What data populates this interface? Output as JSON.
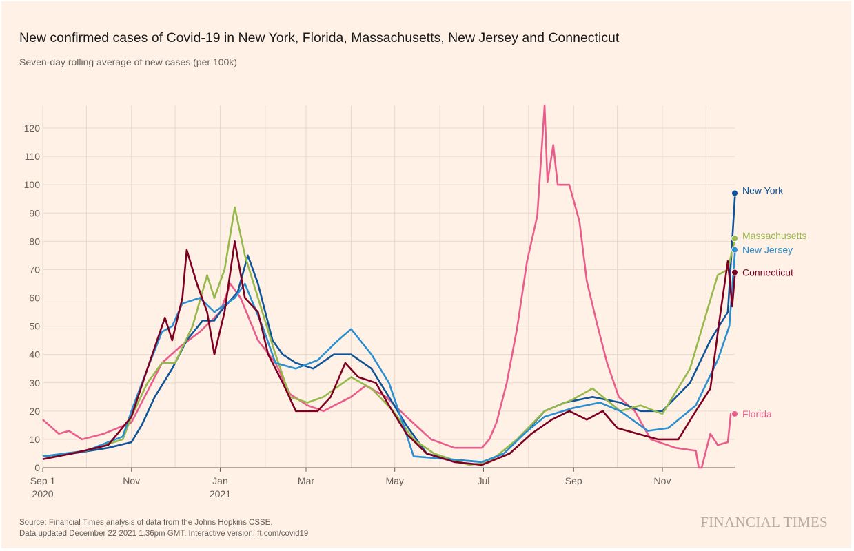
{
  "title": "New confirmed cases of Covid-19 in New York, Florida, Massachusetts, New Jersey and Connecticut",
  "subtitle": "Seven-day rolling average of new cases (per 100k)",
  "source": "Source: Financial Times analysis of data from the Johns Hopkins CSSE.",
  "updated": "Data updated December 22 2021 1.36pm GMT. Interactive version: ft.com/covid19",
  "logo": "FINANCIAL TIMES",
  "chart_data": {
    "type": "line",
    "title": "New confirmed cases of Covid-19 in New York, Florida, Massachusetts, New Jersey and Connecticut",
    "ylabel": "Seven-day rolling average of new cases (per 100k)",
    "x_units": "days since Sep 1 2020",
    "xlim": [
      0,
      476
    ],
    "ylim": [
      0,
      128
    ],
    "yticks": [
      0,
      10,
      20,
      30,
      40,
      50,
      60,
      70,
      80,
      90,
      100,
      110,
      120
    ],
    "xticks": [
      {
        "day": 0,
        "label": "Sep 1",
        "sub": "2020"
      },
      {
        "day": 61,
        "label": "Nov",
        "sub": ""
      },
      {
        "day": 122,
        "label": "Jan",
        "sub": "2021"
      },
      {
        "day": 181,
        "label": "Mar",
        "sub": ""
      },
      {
        "day": 242,
        "label": "May",
        "sub": ""
      },
      {
        "day": 303,
        "label": "Jul",
        "sub": ""
      },
      {
        "day": 365,
        "label": "Sep",
        "sub": ""
      },
      {
        "day": 426,
        "label": "Nov",
        "sub": ""
      }
    ],
    "month_gridlines": [
      0,
      30,
      61,
      91,
      122,
      153,
      181,
      212,
      242,
      273,
      303,
      334,
      365,
      395,
      426,
      456
    ],
    "grid": true,
    "series": [
      {
        "name": "Florida",
        "color": "#e95d8c",
        "points": [
          [
            0,
            17
          ],
          [
            11,
            12
          ],
          [
            18,
            13
          ],
          [
            27,
            10
          ],
          [
            42,
            12
          ],
          [
            61,
            16
          ],
          [
            70,
            25
          ],
          [
            82,
            37
          ],
          [
            95,
            43
          ],
          [
            108,
            48
          ],
          [
            122,
            55
          ],
          [
            129,
            65
          ],
          [
            136,
            60
          ],
          [
            148,
            45
          ],
          [
            160,
            37
          ],
          [
            170,
            26
          ],
          [
            182,
            22
          ],
          [
            193,
            20
          ],
          [
            212,
            25
          ],
          [
            222,
            29
          ],
          [
            236,
            25
          ],
          [
            250,
            18
          ],
          [
            267,
            10
          ],
          [
            283,
            7
          ],
          [
            302,
            7
          ],
          [
            307,
            10
          ],
          [
            312,
            16
          ],
          [
            319,
            30
          ],
          [
            326,
            49
          ],
          [
            333,
            73
          ],
          [
            340,
            89
          ],
          [
            345,
            128
          ],
          [
            347,
            101
          ],
          [
            351,
            114
          ],
          [
            354,
            100
          ],
          [
            362,
            100
          ],
          [
            369,
            87
          ],
          [
            374,
            66
          ],
          [
            381,
            51
          ],
          [
            388,
            37
          ],
          [
            396,
            25
          ],
          [
            407,
            20
          ],
          [
            418,
            10
          ],
          [
            435,
            7
          ],
          [
            449,
            6
          ],
          [
            451,
            0
          ],
          [
            453,
            0
          ],
          [
            459,
            12
          ],
          [
            464,
            8
          ],
          [
            471,
            9
          ],
          [
            473,
            19
          ],
          [
            476,
            19
          ]
        ],
        "end": 19
      },
      {
        "name": "New York",
        "color": "#0f5499",
        "points": [
          [
            0,
            4
          ],
          [
            20,
            5
          ],
          [
            45,
            7
          ],
          [
            61,
            9
          ],
          [
            68,
            15
          ],
          [
            77,
            25
          ],
          [
            89,
            35
          ],
          [
            99,
            45
          ],
          [
            110,
            52
          ],
          [
            118,
            52
          ],
          [
            122,
            55
          ],
          [
            134,
            62
          ],
          [
            141,
            75
          ],
          [
            148,
            65
          ],
          [
            158,
            45
          ],
          [
            165,
            40
          ],
          [
            174,
            37
          ],
          [
            186,
            35
          ],
          [
            200,
            40
          ],
          [
            212,
            40
          ],
          [
            226,
            35
          ],
          [
            238,
            25
          ],
          [
            250,
            15
          ],
          [
            264,
            5
          ],
          [
            279,
            3
          ],
          [
            302,
            2
          ],
          [
            317,
            5
          ],
          [
            331,
            12
          ],
          [
            345,
            20
          ],
          [
            359,
            23
          ],
          [
            378,
            25
          ],
          [
            397,
            23
          ],
          [
            411,
            20
          ],
          [
            426,
            20
          ],
          [
            445,
            30
          ],
          [
            459,
            45
          ],
          [
            471,
            55
          ],
          [
            476,
            97
          ]
        ],
        "end": 97
      },
      {
        "name": "Massachusetts",
        "color": "#96b84c",
        "points": [
          [
            0,
            4
          ],
          [
            30,
            6
          ],
          [
            55,
            10
          ],
          [
            61,
            18
          ],
          [
            72,
            30
          ],
          [
            82,
            37
          ],
          [
            91,
            37
          ],
          [
            103,
            50
          ],
          [
            113,
            68
          ],
          [
            118,
            60
          ],
          [
            125,
            70
          ],
          [
            132,
            92
          ],
          [
            139,
            75
          ],
          [
            148,
            60
          ],
          [
            160,
            40
          ],
          [
            170,
            25
          ],
          [
            182,
            23
          ],
          [
            193,
            25
          ],
          [
            212,
            32
          ],
          [
            226,
            28
          ],
          [
            241,
            20
          ],
          [
            255,
            10
          ],
          [
            269,
            5
          ],
          [
            293,
            1
          ],
          [
            307,
            2
          ],
          [
            326,
            10
          ],
          [
            345,
            20
          ],
          [
            364,
            24
          ],
          [
            378,
            28
          ],
          [
            397,
            20
          ],
          [
            411,
            22
          ],
          [
            426,
            19
          ],
          [
            445,
            35
          ],
          [
            464,
            68
          ],
          [
            471,
            70
          ],
          [
            476,
            81
          ]
        ],
        "end": 81
      },
      {
        "name": "New Jersey",
        "color": "#2a8fd0",
        "points": [
          [
            0,
            4
          ],
          [
            30,
            6
          ],
          [
            55,
            11
          ],
          [
            61,
            20
          ],
          [
            72,
            35
          ],
          [
            82,
            48
          ],
          [
            89,
            50
          ],
          [
            96,
            58
          ],
          [
            108,
            60
          ],
          [
            118,
            55
          ],
          [
            132,
            60
          ],
          [
            139,
            65
          ],
          [
            151,
            50
          ],
          [
            160,
            37
          ],
          [
            174,
            35
          ],
          [
            189,
            38
          ],
          [
            203,
            45
          ],
          [
            212,
            49
          ],
          [
            226,
            40
          ],
          [
            238,
            30
          ],
          [
            248,
            15
          ],
          [
            255,
            4
          ],
          [
            279,
            3
          ],
          [
            302,
            2
          ],
          [
            317,
            5
          ],
          [
            331,
            12
          ],
          [
            345,
            18
          ],
          [
            364,
            21
          ],
          [
            383,
            23
          ],
          [
            397,
            20
          ],
          [
            416,
            13
          ],
          [
            430,
            14
          ],
          [
            449,
            22
          ],
          [
            464,
            38
          ],
          [
            472,
            50
          ],
          [
            476,
            77
          ]
        ],
        "end": 77
      },
      {
        "name": "Connecticut",
        "color": "#7d0023",
        "points": [
          [
            0,
            3
          ],
          [
            20,
            5
          ],
          [
            45,
            8
          ],
          [
            61,
            18
          ],
          [
            72,
            35
          ],
          [
            82,
            50
          ],
          [
            84,
            53
          ],
          [
            89,
            45
          ],
          [
            96,
            60
          ],
          [
            99,
            77
          ],
          [
            106,
            65
          ],
          [
            113,
            55
          ],
          [
            118,
            40
          ],
          [
            125,
            55
          ],
          [
            132,
            80
          ],
          [
            139,
            60
          ],
          [
            148,
            55
          ],
          [
            155,
            40
          ],
          [
            165,
            30
          ],
          [
            174,
            20
          ],
          [
            189,
            20
          ],
          [
            198,
            25
          ],
          [
            208,
            37
          ],
          [
            217,
            32
          ],
          [
            229,
            30
          ],
          [
            238,
            22
          ],
          [
            250,
            12
          ],
          [
            264,
            5
          ],
          [
            283,
            2
          ],
          [
            302,
            1
          ],
          [
            321,
            5
          ],
          [
            336,
            12
          ],
          [
            350,
            17
          ],
          [
            362,
            20
          ],
          [
            374,
            17
          ],
          [
            385,
            20
          ],
          [
            395,
            14
          ],
          [
            409,
            12
          ],
          [
            423,
            10
          ],
          [
            437,
            10
          ],
          [
            449,
            20
          ],
          [
            459,
            28
          ],
          [
            466,
            55
          ],
          [
            471,
            73
          ],
          [
            474,
            57
          ],
          [
            476,
            69
          ]
        ],
        "end": 69
      }
    ]
  }
}
